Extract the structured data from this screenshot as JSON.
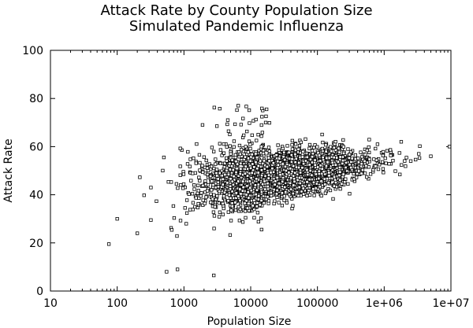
{
  "chart_data": {
    "type": "scatter",
    "title": "Attack Rate by County Population Size",
    "subtitle": "Simulated Pandemic Influenza",
    "xlabel": "Population Size",
    "ylabel": "Attack Rate",
    "xscale": "log",
    "xlim": [
      10,
      10000000
    ],
    "ylim": [
      0,
      100
    ],
    "grid": false,
    "legend": "none",
    "x_ticks": [
      10,
      100,
      1000,
      10000,
      100000,
      1000000,
      10000000
    ],
    "x_tick_labels": [
      "10",
      "100",
      "1000",
      "10000",
      "100000",
      "1e+06",
      "1e+07"
    ],
    "y_ticks": [
      0,
      20,
      40,
      60,
      80,
      100
    ],
    "y_tick_labels": [
      "0",
      "20",
      "40",
      "60",
      "80",
      "100"
    ],
    "marker": "hollow-square",
    "point_count": 3100,
    "cloud": {
      "center_log10_x": 4.5,
      "center_y": 49,
      "log10_x_range": [
        1.85,
        7.0
      ],
      "y_range": [
        6,
        77
      ]
    },
    "points": [
      [
        75,
        19.5
      ],
      [
        100,
        30
      ],
      [
        200,
        24
      ],
      [
        320,
        29.5
      ],
      [
        320,
        43
      ],
      [
        550,
        8
      ],
      [
        800,
        9
      ],
      [
        2800,
        6.5
      ],
      [
        6500,
        77
      ],
      [
        1900,
        69
      ],
      [
        9500000,
        60
      ],
      [
        5000000,
        56
      ],
      [
        3300000,
        57
      ],
      [
        2500000,
        54
      ],
      [
        1800000,
        62
      ]
    ]
  }
}
